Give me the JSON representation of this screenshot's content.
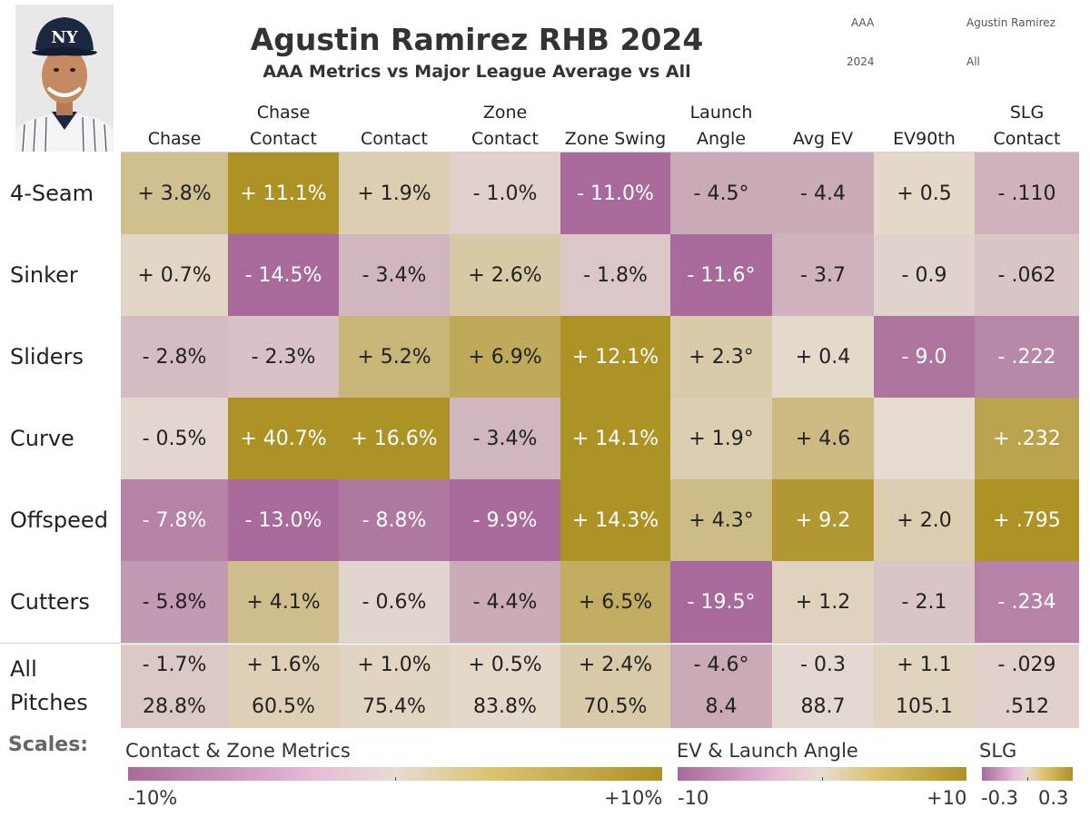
{
  "header": {
    "title": "Agustin Ramirez RHB 2024",
    "subtitle": "AAA Metrics vs Major League Average vs All"
  },
  "filters": {
    "level": "AAA",
    "player": "Agustin Ramirez",
    "year": "2024",
    "pitch_filter": "All"
  },
  "colors": {
    "low": "#a86a9a",
    "mid": "#e6dcd2",
    "high": "#ad9225"
  },
  "chart_data": {
    "type": "heatmap",
    "title": "Agustin Ramirez RHB 2024",
    "subtitle": "AAA Metrics vs Major League Average vs All",
    "columns": [
      {
        "label": [
          "Chase"
        ],
        "scale": "pct"
      },
      {
        "label": [
          "Chase",
          "Contact"
        ],
        "scale": "pct"
      },
      {
        "label": [
          "Contact"
        ],
        "scale": "pct"
      },
      {
        "label": [
          "Zone",
          "Contact"
        ],
        "scale": "pct"
      },
      {
        "label": [
          "Zone Swing"
        ],
        "scale": "pct"
      },
      {
        "label": [
          "Launch",
          "Angle"
        ],
        "scale": "ev"
      },
      {
        "label": [
          "Avg EV"
        ],
        "scale": "ev"
      },
      {
        "label": [
          "EV90th"
        ],
        "scale": "ev"
      },
      {
        "label": [
          "SLG",
          "Contact"
        ],
        "scale": "slg"
      }
    ],
    "rows": [
      {
        "label": "4-Seam",
        "values": [
          3.8,
          11.1,
          1.9,
          -1.0,
          -11.0,
          -4.5,
          -4.4,
          0.5,
          -0.11
        ],
        "labels": [
          "+ 3.8%",
          "+ 11.1%",
          "+ 1.9%",
          "- 1.0%",
          "- 11.0%",
          "- 4.5°",
          "- 4.4",
          "+ 0.5",
          "- .110"
        ]
      },
      {
        "label": "Sinker",
        "values": [
          0.7,
          -14.5,
          -3.4,
          2.6,
          -1.8,
          -11.6,
          -3.7,
          -0.9,
          -0.062
        ],
        "labels": [
          "+ 0.7%",
          "- 14.5%",
          "- 3.4%",
          "+ 2.6%",
          "- 1.8%",
          "- 11.6°",
          "- 3.7",
          "- 0.9",
          "- .062"
        ]
      },
      {
        "label": "Sliders",
        "values": [
          -2.8,
          -2.3,
          5.2,
          6.9,
          12.1,
          2.3,
          0.4,
          -9.0,
          -0.222
        ],
        "labels": [
          "- 2.8%",
          "- 2.3%",
          "+ 5.2%",
          "+ 6.9%",
          "+ 12.1%",
          "+ 2.3°",
          "+ 0.4",
          "- 9.0",
          "- .222"
        ]
      },
      {
        "label": "Curve",
        "values": [
          -0.5,
          40.7,
          16.6,
          -3.4,
          14.1,
          1.9,
          4.6,
          null,
          0.232
        ],
        "labels": [
          "- 0.5%",
          "+ 40.7%",
          "+ 16.6%",
          "- 3.4%",
          "+ 14.1%",
          "+ 1.9°",
          "+ 4.6",
          "",
          "+ .232"
        ]
      },
      {
        "label": "Offspeed",
        "values": [
          -7.8,
          -13.0,
          -8.8,
          -9.9,
          14.3,
          4.3,
          9.2,
          2.0,
          0.795
        ],
        "labels": [
          "- 7.8%",
          "- 13.0%",
          "- 8.8%",
          "- 9.9%",
          "+ 14.3%",
          "+ 4.3°",
          "+ 9.2",
          "+ 2.0",
          "+ .795"
        ]
      },
      {
        "label": "Cutters",
        "values": [
          -5.8,
          4.1,
          -0.6,
          -4.4,
          6.5,
          -19.5,
          1.2,
          -2.1,
          -0.234
        ],
        "labels": [
          "- 5.8%",
          "+ 4.1%",
          "- 0.6%",
          "- 4.4%",
          "+ 6.5%",
          "- 19.5°",
          "+ 1.2",
          "- 2.1",
          "- .234"
        ]
      }
    ],
    "all_pitches": {
      "label": [
        "All",
        "Pitches"
      ],
      "diffs": [
        -1.7,
        1.6,
        1.0,
        0.5,
        2.4,
        -4.6,
        -0.3,
        1.1,
        -0.029
      ],
      "diff_labels": [
        "- 1.7%",
        "+ 1.6%",
        "+ 1.0%",
        "+ 0.5%",
        "+ 2.4%",
        "- 4.6°",
        "- 0.3",
        "+ 1.1",
        "- .029"
      ],
      "totals": [
        "28.8%",
        "60.5%",
        "75.4%",
        "83.8%",
        "70.5%",
        "8.4",
        "88.7",
        "105.1",
        ".512"
      ]
    },
    "scales": {
      "label": "Scales:",
      "pct": {
        "title": "Contact & Zone Metrics",
        "min_label": "-10%",
        "max_label": "+10%",
        "range": [
          -10,
          10
        ]
      },
      "ev": {
        "title": "EV & Launch Angle",
        "min_label": "-10",
        "max_label": "+10",
        "range": [
          -10,
          10
        ]
      },
      "slg": {
        "title": "SLG",
        "min_label": "-0.3",
        "max_label": "0.3",
        "range": [
          -0.3,
          0.3
        ]
      }
    }
  }
}
